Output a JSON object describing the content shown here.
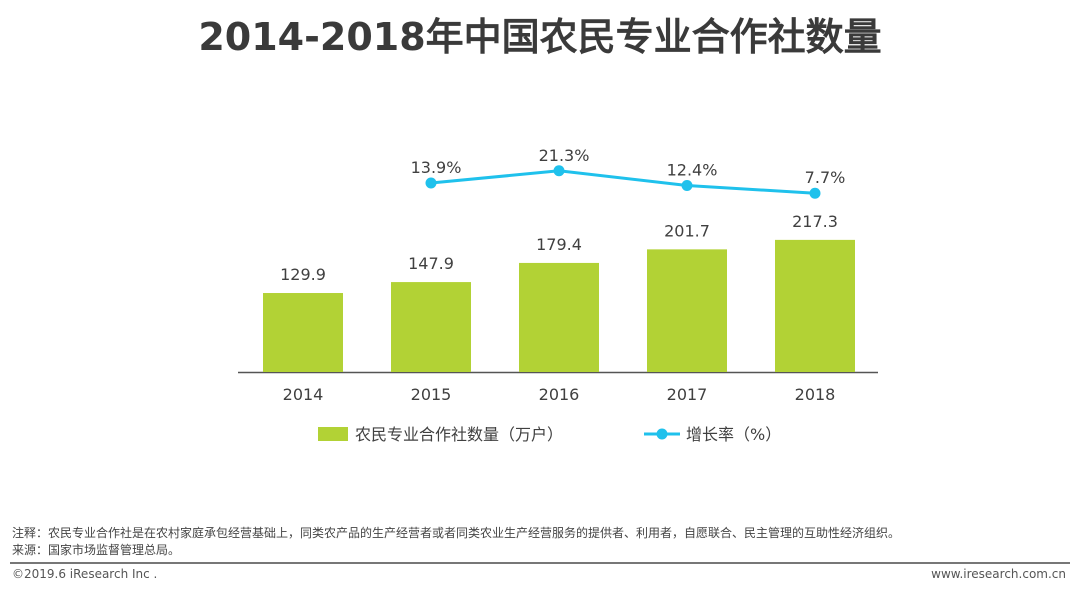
{
  "title": "2014-2018年中国农民专业合作社数量",
  "chart_data": {
    "type": "bar+line",
    "title": "2014-2018年中国农民专业合作社数量",
    "categories": [
      "2014",
      "2015",
      "2016",
      "2017",
      "2018"
    ],
    "series": [
      {
        "name": "农民专业合作社数量（万户）",
        "type": "bar",
        "color": "#b2d235",
        "values": [
          129.9,
          147.9,
          179.4,
          201.7,
          217.3
        ],
        "labels": [
          "129.9",
          "147.9",
          "179.4",
          "201.7",
          "217.3"
        ]
      },
      {
        "name": "增长率（%）",
        "type": "line",
        "color": "#1fc1ec",
        "values": [
          null,
          13.9,
          21.3,
          12.4,
          7.7
        ],
        "labels": [
          "",
          "13.9%",
          "21.3%",
          "12.4%",
          "7.7%"
        ]
      }
    ],
    "legend": "bottom",
    "grid": false
  },
  "notes": {
    "note": "注释：农民专业合作社是在农村家庭承包经营基础上，同类农产品的生产经营者或者同类农业生产经营服务的提供者、利用者，自愿联合、民主管理的互助性经济组织。",
    "source": "来源：国家市场监督管理总局。"
  },
  "footer": {
    "copyright": "©2019.6 iResearch Inc .",
    "website": "www.iresearch.com.cn"
  }
}
